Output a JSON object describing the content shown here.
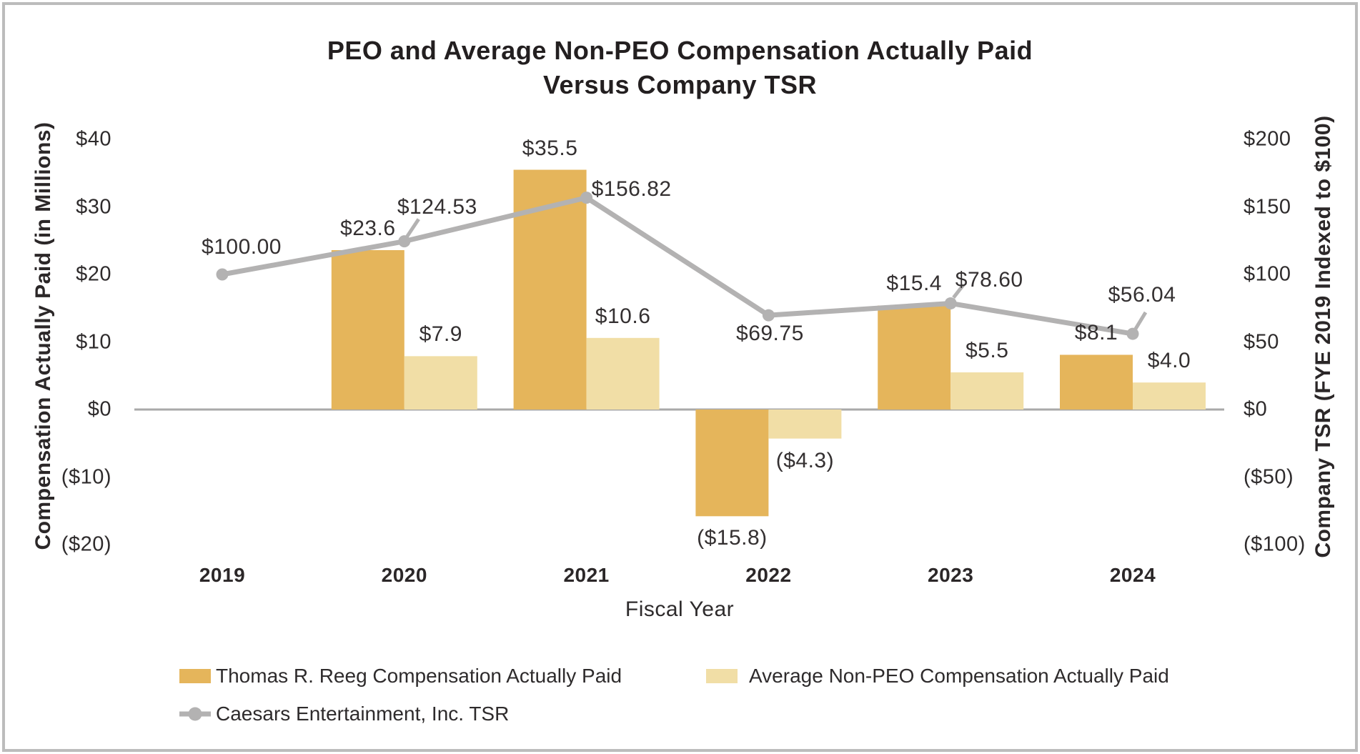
{
  "title": {
    "line1": "PEO and Average Non-PEO Compensation Actually Paid",
    "line2": "Versus Company TSR"
  },
  "axes": {
    "left": {
      "title": "Compensation Actually Paid (in Millions)",
      "ticks": [
        {
          "label": "$40",
          "value": 40
        },
        {
          "label": "$30",
          "value": 30
        },
        {
          "label": "$20",
          "value": 20
        },
        {
          "label": "$10",
          "value": 10
        },
        {
          "label": "$0",
          "value": 0
        },
        {
          "label": "($10)",
          "value": -10
        },
        {
          "label": "($20)",
          "value": -20
        }
      ]
    },
    "right": {
      "title": "Company TSR (FYE 2019 Indexed to $100)",
      "ticks": [
        {
          "label": "$200",
          "value": 200
        },
        {
          "label": "$150",
          "value": 150
        },
        {
          "label": "$100",
          "value": 100
        },
        {
          "label": "$50",
          "value": 50
        },
        {
          "label": "$0",
          "value": 0
        },
        {
          "label": "($50)",
          "value": -50
        },
        {
          "label": "($100)",
          "value": -100
        }
      ]
    },
    "x": {
      "title": "Fiscal Year"
    }
  },
  "chart_data": {
    "type": "combo-bar-line",
    "categories": [
      "2019",
      "2020",
      "2021",
      "2022",
      "2023",
      "2024"
    ],
    "series": [
      {
        "id": "peo",
        "type": "bar",
        "axis": "left",
        "name": "Thomas R. Reeg Compensation Actually Paid",
        "color": "#E5B55B",
        "values": [
          null,
          23.6,
          35.5,
          -15.8,
          15.4,
          8.1
        ],
        "labels": [
          "",
          "$23.6",
          "$35.5",
          "($15.8)",
          "$15.4",
          "$8.1"
        ]
      },
      {
        "id": "nonpeo",
        "type": "bar",
        "axis": "left",
        "name": "Average Non-PEO Compensation Actually Paid",
        "color": "#F1DEA6",
        "values": [
          null,
          7.9,
          10.6,
          -4.3,
          5.5,
          4.0
        ],
        "labels": [
          "",
          "$7.9",
          "$10.6",
          "($4.3)",
          "$5.5",
          "$4.0"
        ]
      },
      {
        "id": "tsr",
        "type": "line",
        "axis": "right",
        "name": "Caesars Entertainment, Inc. TSR",
        "color": "#B3B2B2",
        "values": [
          100.0,
          124.53,
          156.82,
          69.75,
          78.6,
          56.04
        ],
        "labels": [
          "$100.00",
          "$124.53",
          "$156.82",
          "$69.75",
          "$78.60",
          "$56.04"
        ]
      }
    ],
    "left_axis": {
      "range": [
        -20,
        40
      ],
      "tick_step": 10
    },
    "right_axis": {
      "range": [
        -100,
        200
      ],
      "tick_step": 50
    },
    "legend_position": "bottom",
    "grid": false
  }
}
